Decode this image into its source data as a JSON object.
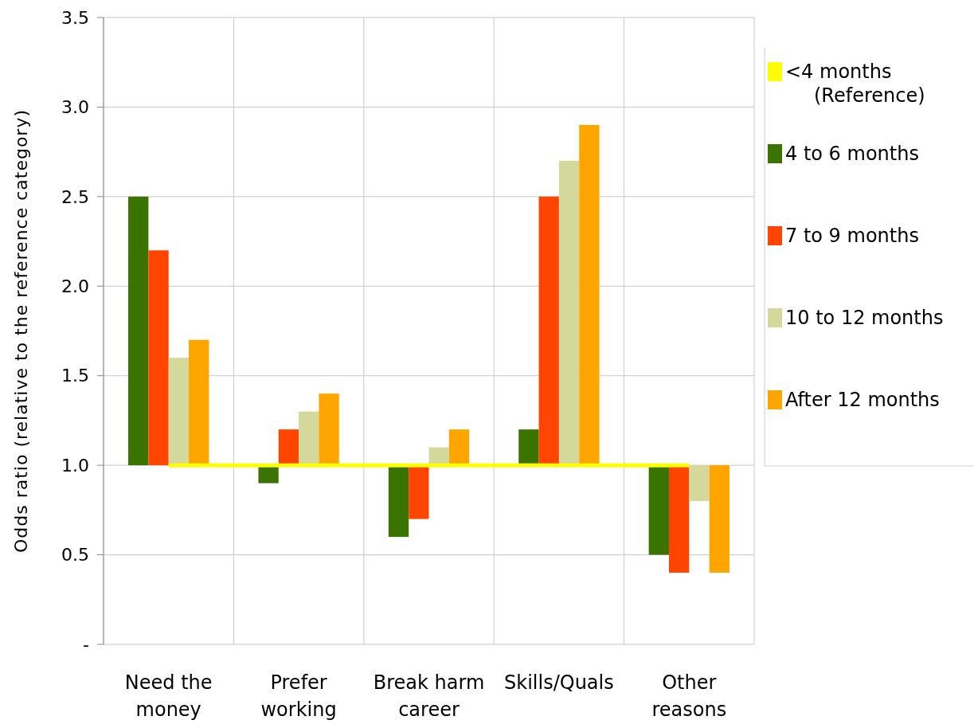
{
  "chart_data": {
    "type": "bar",
    "ylabel": "Odds ratio (relative to the reference category)",
    "categories": [
      "Need the money",
      "Prefer working",
      "Break harm career",
      "Skills/Quals",
      "Other reasons"
    ],
    "series": [
      {
        "name": "<4 months (Reference)",
        "type": "line",
        "color": "#ffff00",
        "values": [
          1,
          1,
          1,
          1,
          1
        ]
      },
      {
        "name": "4 to 6 months",
        "color": "#3a7300",
        "base": [
          1,
          1,
          1,
          1,
          1
        ],
        "values": [
          1.5,
          -0.1,
          -0.4,
          0.2,
          -0.5
        ]
      },
      {
        "name": "7 to 9 months",
        "color": "#ff4500",
        "base": [
          1,
          1,
          1,
          1,
          1
        ],
        "values": [
          1.2,
          0.2,
          -0.3,
          1.5,
          -0.6
        ]
      },
      {
        "name": "10 to 12 months",
        "color": "#d4d89a",
        "base": [
          1,
          1,
          1,
          1,
          1
        ],
        "values": [
          0.6,
          0.3,
          0.1,
          1.7,
          -0.2
        ]
      },
      {
        "name": "After 12 months",
        "color": "#ffa500",
        "base": [
          1,
          1,
          1,
          1,
          1
        ],
        "values": [
          0.7,
          0.4,
          0.2,
          1.9,
          -0.6
        ]
      }
    ],
    "ylim": [
      0,
      3.5
    ],
    "yticks": [
      {
        "value": 0,
        "label": "-"
      },
      {
        "value": 0.5,
        "label": "0.5"
      },
      {
        "value": 1,
        "label": "1.0"
      },
      {
        "value": 1.5,
        "label": "1.5"
      },
      {
        "value": 2,
        "label": "2.0"
      },
      {
        "value": 2.5,
        "label": "2.5"
      },
      {
        "value": 3,
        "label": "3.0"
      },
      {
        "value": 3.5,
        "label": "3.5"
      }
    ],
    "grid": true,
    "legend": "right",
    "marker": "none"
  }
}
